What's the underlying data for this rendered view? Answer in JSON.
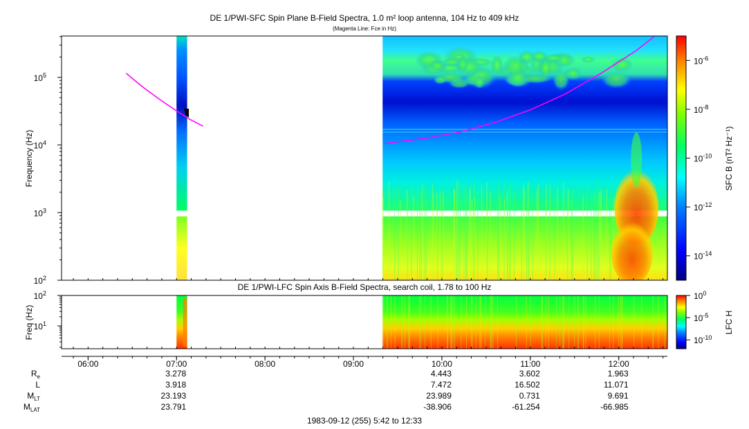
{
  "chart_data": [
    {
      "type": "heatmap",
      "title": "DE 1/PWI-SFC  Spin Plane B-Field Spectra, 1.0 m² loop antenna, 104 Hz to 409 kHz",
      "subtitle": "(Magenta Line: Fce in Hz)",
      "ylabel": "Frequency (Hz)",
      "yscale": "log",
      "ylim": [
        100,
        409000
      ],
      "y_ticks": [
        "10²",
        "10³",
        "10⁴",
        "10⁵"
      ],
      "colorbar": {
        "label": "SFC B (nT² Hz⁻¹)",
        "scale": "log",
        "range": [
          1e-15,
          1e-05
        ],
        "ticks": [
          "10⁻⁶",
          "10⁻⁸",
          "10⁻¹⁰",
          "10⁻¹²",
          "10⁻¹⁴"
        ]
      },
      "data_segments_hours": [
        [
          7.0,
          7.12
        ],
        [
          9.33,
          12.55
        ]
      ],
      "series": [
        {
          "name": "Fce",
          "color": "#ff00ff",
          "x": [
            6.43,
            6.6,
            6.8,
            7.0,
            7.15,
            7.3
          ],
          "y": [
            115000,
            75000,
            48000,
            32000,
            24000,
            19000
          ]
        },
        {
          "name": "Fce",
          "color": "#ff00ff",
          "x": [
            9.35,
            9.8,
            10.2,
            10.6,
            11.0,
            11.4,
            11.8,
            12.2,
            12.4
          ],
          "y": [
            10500,
            12500,
            15500,
            21500,
            33000,
            57000,
            115000,
            250000,
            400000
          ]
        }
      ]
    },
    {
      "type": "heatmap",
      "title": "DE 1/PWI-LFC  Spin Axis B-Field Spectra, search coil, 1.78 to 100 Hz",
      "ylabel": "Freq (Hz)",
      "yscale": "log",
      "ylim": [
        1.78,
        100
      ],
      "y_ticks": [
        "10¹",
        "10²"
      ],
      "colorbar": {
        "label": "LFC H",
        "scale": "log",
        "range": [
          1e-12,
          1
        ],
        "ticks": [
          "10⁰",
          "10⁻⁵",
          "10⁻¹⁰"
        ]
      },
      "data_segments_hours": [
        [
          7.0,
          7.12
        ],
        [
          9.33,
          12.55
        ]
      ]
    }
  ],
  "x_axis": {
    "range_hours": [
      5.7,
      12.55
    ],
    "tick_hours": [
      6,
      7,
      8,
      9,
      10,
      11,
      12
    ],
    "tick_labels": [
      "06:00",
      "07:00",
      "08:00",
      "09:00",
      "10:00",
      "11:00",
      "12:00"
    ]
  },
  "ephemeris": {
    "labels": [
      "R",
      "L",
      "M",
      "M"
    ],
    "label_subscripts": [
      "e",
      "",
      "LT",
      "LAT"
    ],
    "columns": [
      {
        "hour": 7,
        "values": [
          "3.278",
          "3.918",
          "23.193",
          "23.791"
        ]
      },
      {
        "hour": 10,
        "values": [
          "4.443",
          "7.472",
          "23.989",
          "-38.906"
        ]
      },
      {
        "hour": 11,
        "values": [
          "3.602",
          "16.502",
          "0.731",
          "-61.254"
        ]
      },
      {
        "hour": 12,
        "values": [
          "1.963",
          "11.071",
          "9.691",
          "-66.985"
        ]
      }
    ]
  },
  "footer": "1983-09-12 (255) 5:42 to 12:33"
}
